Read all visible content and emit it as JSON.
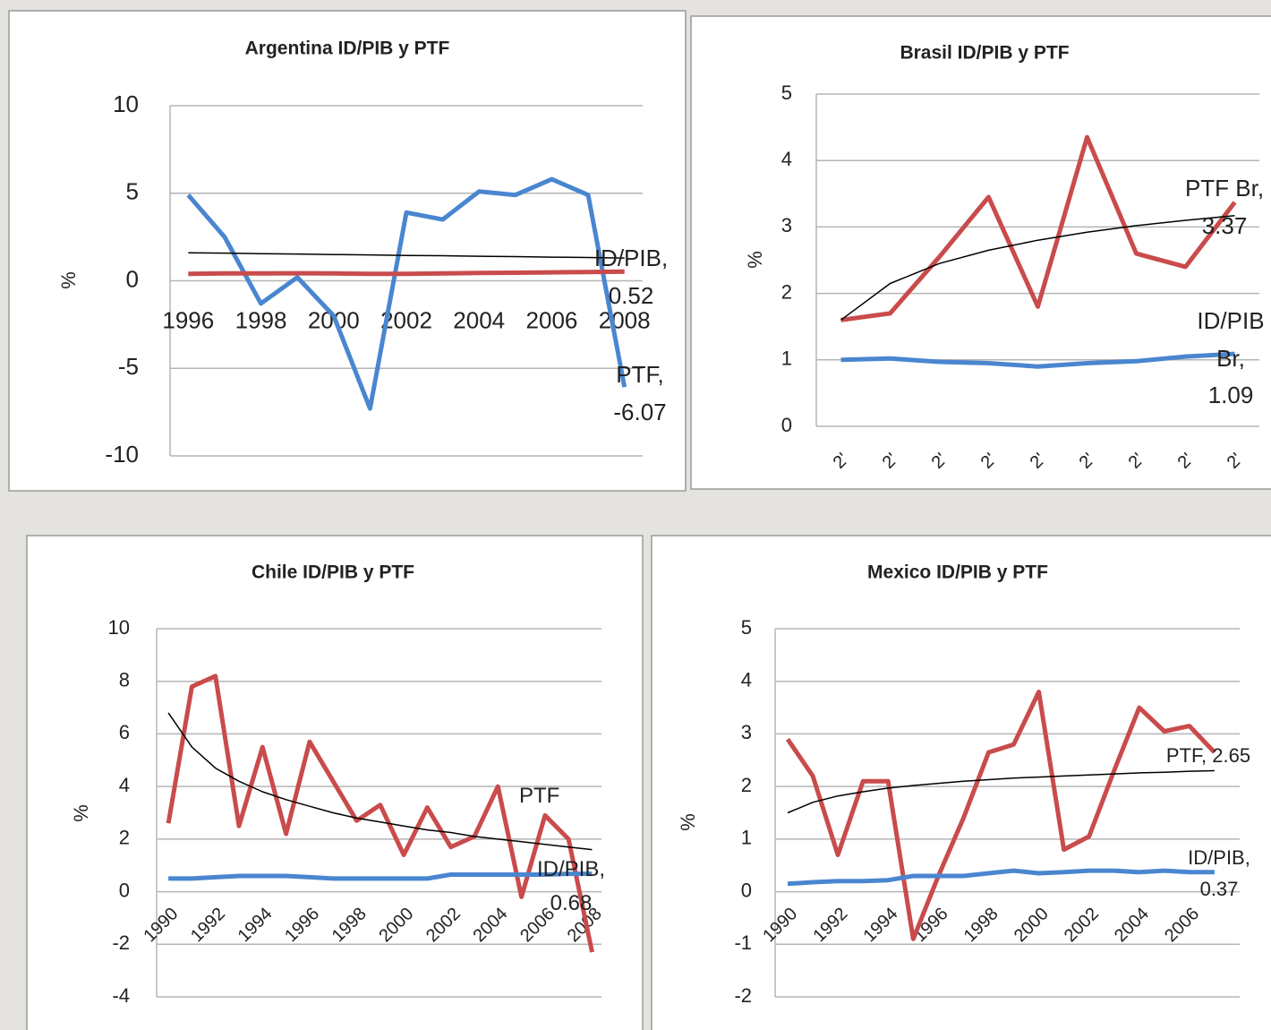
{
  "chart_data": [
    {
      "type": "line",
      "title": "Argentina ID/PIB y PTF",
      "ylabel": "%",
      "x": [
        1996,
        1997,
        1998,
        1999,
        2000,
        2001,
        2002,
        2003,
        2004,
        2005,
        2006,
        2007,
        2008
      ],
      "xlim": [
        1995.5,
        2008.5
      ],
      "xticks": [
        1996,
        1998,
        2000,
        2002,
        2004,
        2006,
        2008
      ],
      "ylim": [
        -10,
        10
      ],
      "yticks": [
        -10,
        -5,
        0,
        5,
        10
      ],
      "grid": true,
      "series": [
        {
          "color": "#4a86d0",
          "values": [
            4.9,
            2.5,
            -1.3,
            0.2,
            -2.0,
            -7.3,
            3.9,
            3.5,
            5.1,
            4.9,
            5.8,
            4.9,
            -6.07
          ],
          "value_labels": [
            null,
            null,
            null,
            null,
            null,
            null,
            null,
            null,
            null,
            null,
            null,
            null,
            "PTF, -6.07"
          ]
        },
        {
          "color": "#c94b4b",
          "values": [
            0.4,
            0.42,
            0.42,
            0.43,
            0.42,
            0.4,
            0.4,
            0.42,
            0.45,
            0.46,
            0.48,
            0.5,
            0.52
          ],
          "value_labels": [
            null,
            null,
            null,
            null,
            null,
            null,
            null,
            null,
            null,
            null,
            null,
            null,
            "ID/PIB, 0.52"
          ]
        },
        {
          "color": "#000000",
          "values": [
            1.6,
            1.58,
            1.55,
            1.53,
            1.5,
            1.48,
            1.45,
            1.43,
            1.4,
            1.38,
            1.35,
            1.33,
            1.3
          ]
        }
      ]
    },
    {
      "type": "line",
      "title": "Brasil ID/PIB y PTF",
      "ylabel": "%",
      "categories": [
        "2'",
        "2'",
        "2'",
        "2'",
        "2'",
        "2'",
        "2'",
        "2'",
        "2'"
      ],
      "ylim": [
        0,
        5
      ],
      "yticks": [
        0,
        1,
        2,
        3,
        4,
        5
      ],
      "grid": true,
      "series": [
        {
          "color": "#c94b4b",
          "values": [
            1.6,
            1.7,
            2.55,
            3.45,
            1.8,
            4.35,
            2.6,
            2.4,
            3.37
          ],
          "value_labels": [
            null,
            null,
            null,
            null,
            null,
            null,
            null,
            null,
            "PTF Br, 3.37"
          ]
        },
        {
          "color": "#4a86d0",
          "values": [
            1.0,
            1.02,
            0.97,
            0.95,
            0.9,
            0.95,
            0.98,
            1.05,
            1.09
          ],
          "value_labels": [
            null,
            null,
            null,
            null,
            null,
            null,
            null,
            null,
            "ID/PIB Br, 1.09"
          ]
        },
        {
          "color": "#000000",
          "values": [
            1.6,
            2.15,
            2.45,
            2.65,
            2.8,
            2.92,
            3.02,
            3.1,
            3.17
          ]
        }
      ]
    },
    {
      "type": "line",
      "title": "Chile ID/PIB y PTF",
      "ylabel": "%",
      "x": [
        1990,
        1991,
        1992,
        1993,
        1994,
        1995,
        1996,
        1997,
        1998,
        1999,
        2000,
        2001,
        2002,
        2003,
        2004,
        2005,
        2006,
        2007,
        2008
      ],
      "xlim": [
        1989.5,
        2008.4
      ],
      "xticks": [
        1990,
        1992,
        1994,
        1996,
        1998,
        2000,
        2002,
        2004,
        2006,
        2008
      ],
      "ylim": [
        -4,
        10
      ],
      "yticks": [
        -4,
        -2,
        0,
        2,
        4,
        6,
        8,
        10
      ],
      "grid": true,
      "series": [
        {
          "name": "PTF",
          "color": "#c94b4b",
          "values": [
            2.6,
            7.8,
            8.2,
            2.5,
            5.5,
            2.2,
            5.7,
            4.2,
            2.7,
            3.3,
            1.4,
            3.2,
            1.7,
            2.1,
            4.0,
            -0.2,
            2.9,
            2.0,
            -2.3
          ]
        },
        {
          "color": "#4a86d0",
          "values": [
            0.5,
            0.5,
            0.55,
            0.6,
            0.6,
            0.6,
            0.55,
            0.5,
            0.5,
            0.5,
            0.5,
            0.5,
            0.65,
            0.65,
            0.65,
            0.65,
            0.65,
            0.68,
            0.68
          ],
          "value_labels": [
            null,
            null,
            null,
            null,
            null,
            null,
            null,
            null,
            null,
            null,
            null,
            null,
            null,
            null,
            null,
            null,
            null,
            null,
            "ID/PIB, 0.68"
          ]
        },
        {
          "color": "#000000",
          "values": [
            6.8,
            5.5,
            4.7,
            4.2,
            3.8,
            3.5,
            3.25,
            3.0,
            2.8,
            2.65,
            2.5,
            2.35,
            2.25,
            2.1,
            2.0,
            1.9,
            1.8,
            1.7,
            1.6
          ]
        }
      ]
    },
    {
      "type": "line",
      "title": "Mexico ID/PIB y PTF",
      "ylabel": "%",
      "x": [
        1990,
        1991,
        1992,
        1993,
        1994,
        1995,
        1996,
        1997,
        1998,
        1999,
        2000,
        2001,
        2002,
        2003,
        2004,
        2005,
        2006,
        2007
      ],
      "xlim": [
        1989.5,
        2008
      ],
      "xticks": [
        1990,
        1992,
        1994,
        1996,
        1998,
        2000,
        2002,
        2004,
        2006
      ],
      "ylim": [
        -2,
        5
      ],
      "yticks": [
        -2,
        -1,
        0,
        1,
        2,
        3,
        4,
        5
      ],
      "grid": true,
      "series": [
        {
          "color": "#c94b4b",
          "values": [
            2.9,
            2.2,
            0.7,
            2.1,
            2.1,
            -0.9,
            0.3,
            1.4,
            2.65,
            2.8,
            3.8,
            0.8,
            1.05,
            2.3,
            3.5,
            3.05,
            3.15,
            2.65
          ],
          "value_labels": [
            null,
            null,
            null,
            null,
            null,
            null,
            null,
            null,
            null,
            null,
            null,
            null,
            null,
            null,
            null,
            null,
            null,
            "PTF, 2.65"
          ]
        },
        {
          "color": "#4a86d0",
          "values": [
            0.15,
            0.18,
            0.2,
            0.2,
            0.22,
            0.3,
            0.3,
            0.3,
            0.35,
            0.4,
            0.35,
            0.37,
            0.4,
            0.4,
            0.37,
            0.4,
            0.37,
            0.37
          ],
          "value_labels": [
            null,
            null,
            null,
            null,
            null,
            null,
            null,
            null,
            null,
            null,
            null,
            null,
            null,
            null,
            null,
            null,
            null,
            "ID/PIB, 0.37"
          ]
        },
        {
          "color": "#000000",
          "values": [
            1.5,
            1.7,
            1.82,
            1.9,
            1.97,
            2.02,
            2.06,
            2.1,
            2.13,
            2.16,
            2.18,
            2.2,
            2.22,
            2.24,
            2.26,
            2.27,
            2.29,
            2.3
          ]
        }
      ]
    }
  ]
}
